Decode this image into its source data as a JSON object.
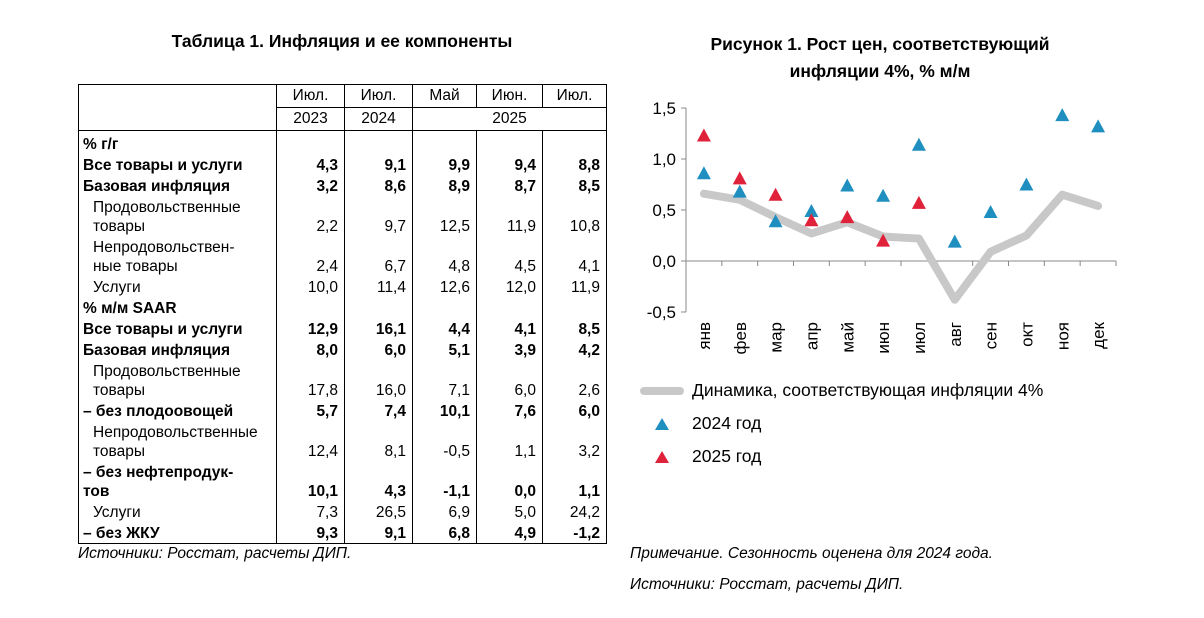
{
  "table": {
    "title": "Таблица 1. Инфляция и ее компоненты",
    "header_months": [
      "Июл.",
      "Июл.",
      "Май",
      "Июн.",
      "Июл."
    ],
    "header_years": [
      "2023",
      "2024",
      "2025"
    ],
    "rows": [
      {
        "label": "% г/г",
        "values": [
          "",
          "",
          "",
          "",
          ""
        ],
        "style": "section"
      },
      {
        "label": "Все товары и услуги",
        "values": [
          "4,3",
          "9,1",
          "9,9",
          "9,4",
          "8,8"
        ],
        "style": "bold"
      },
      {
        "label": "Базовая инфляция",
        "values": [
          "3,2",
          "8,6",
          "8,9",
          "8,7",
          "8,5"
        ],
        "style": "bold"
      },
      {
        "label": "Продовольственные",
        "label2": "товары",
        "values": [
          "2,2",
          "9,7",
          "12,5",
          "11,9",
          "10,8"
        ],
        "style": "normal"
      },
      {
        "label": "Непродовольствен-",
        "label2": "ные товары",
        "values": [
          "2,4",
          "6,7",
          "4,8",
          "4,5",
          "4,1"
        ],
        "style": "normal"
      },
      {
        "label": "Услуги",
        "values": [
          "10,0",
          "11,4",
          "12,6",
          "12,0",
          "11,9"
        ],
        "style": "normal"
      },
      {
        "label": "% м/м SAAR",
        "values": [
          "",
          "",
          "",
          "",
          ""
        ],
        "style": "section"
      },
      {
        "label": "Все товары и услуги",
        "values": [
          "12,9",
          "16,1",
          "4,4",
          "4,1",
          "8,5"
        ],
        "style": "bold"
      },
      {
        "label": "Базовая инфляция",
        "values": [
          "8,0",
          "6,0",
          "5,1",
          "3,9",
          "4,2"
        ],
        "style": "bold"
      },
      {
        "label": "Продовольственные",
        "label2": "товары",
        "values": [
          "17,8",
          "16,0",
          "7,1",
          "6,0",
          "2,6"
        ],
        "style": "normal"
      },
      {
        "label": "– без плодоовощей",
        "values": [
          "5,7",
          "7,4",
          "10,1",
          "7,6",
          "6,0"
        ],
        "style": "bold"
      },
      {
        "label": "Непродовольственные",
        "label2": "товары",
        "values": [
          "12,4",
          "8,1",
          "-0,5",
          "1,1",
          "3,2"
        ],
        "style": "normal"
      },
      {
        "label": "– без нефтепродук-",
        "label2": "тов",
        "values": [
          "10,1",
          "4,3",
          "-1,1",
          "0,0",
          "1,1"
        ],
        "style": "bold"
      },
      {
        "label": "Услуги",
        "values": [
          "7,3",
          "26,5",
          "6,9",
          "5,0",
          "24,2"
        ],
        "style": "normal"
      },
      {
        "label": "– без ЖКУ",
        "values": [
          "9,3",
          "9,1",
          "6,8",
          "4,9",
          "-1,2"
        ],
        "style": "bold"
      }
    ],
    "source": "Источники: Росстат, расчеты ДИП."
  },
  "figure": {
    "title_line1": "Рисунок 1. Рост цен, соответствующий",
    "title_line2": "инфляции 4%, % м/м",
    "note": "Примечание. Сезонность оценена для 2024 года.",
    "source": "Источники: Росстат, расчеты ДИП."
  },
  "chart_data": {
    "type": "line",
    "categories": [
      "янв",
      "фев",
      "мар",
      "апр",
      "май",
      "июн",
      "июл",
      "авг",
      "сен",
      "окт",
      "ноя",
      "дек"
    ],
    "ylim": [
      -0.5,
      1.5
    ],
    "yticks": [
      "1,5",
      "1,0",
      "0,5",
      "0,0",
      "-0,5"
    ],
    "grid": false,
    "legend_position": "bottom",
    "series": [
      {
        "name": "Динамика, соответствующая инфляции 4%",
        "kind": "line",
        "color": "#c8c8c8",
        "values": [
          0.66,
          0.6,
          0.43,
          0.27,
          0.38,
          0.24,
          0.22,
          -0.38,
          0.09,
          0.25,
          0.65,
          0.54
        ]
      },
      {
        "name": "2024 год",
        "kind": "markers",
        "color": "#1f8fc0",
        "values": [
          0.86,
          0.68,
          0.39,
          0.49,
          0.74,
          0.64,
          1.14,
          0.19,
          0.48,
          0.75,
          1.43,
          1.32
        ]
      },
      {
        "name": "2025 год",
        "kind": "markers",
        "color": "#e0213a",
        "values": [
          1.23,
          0.81,
          0.65,
          0.4,
          0.43,
          0.2,
          0.57,
          null,
          null,
          null,
          null,
          null
        ]
      }
    ]
  }
}
